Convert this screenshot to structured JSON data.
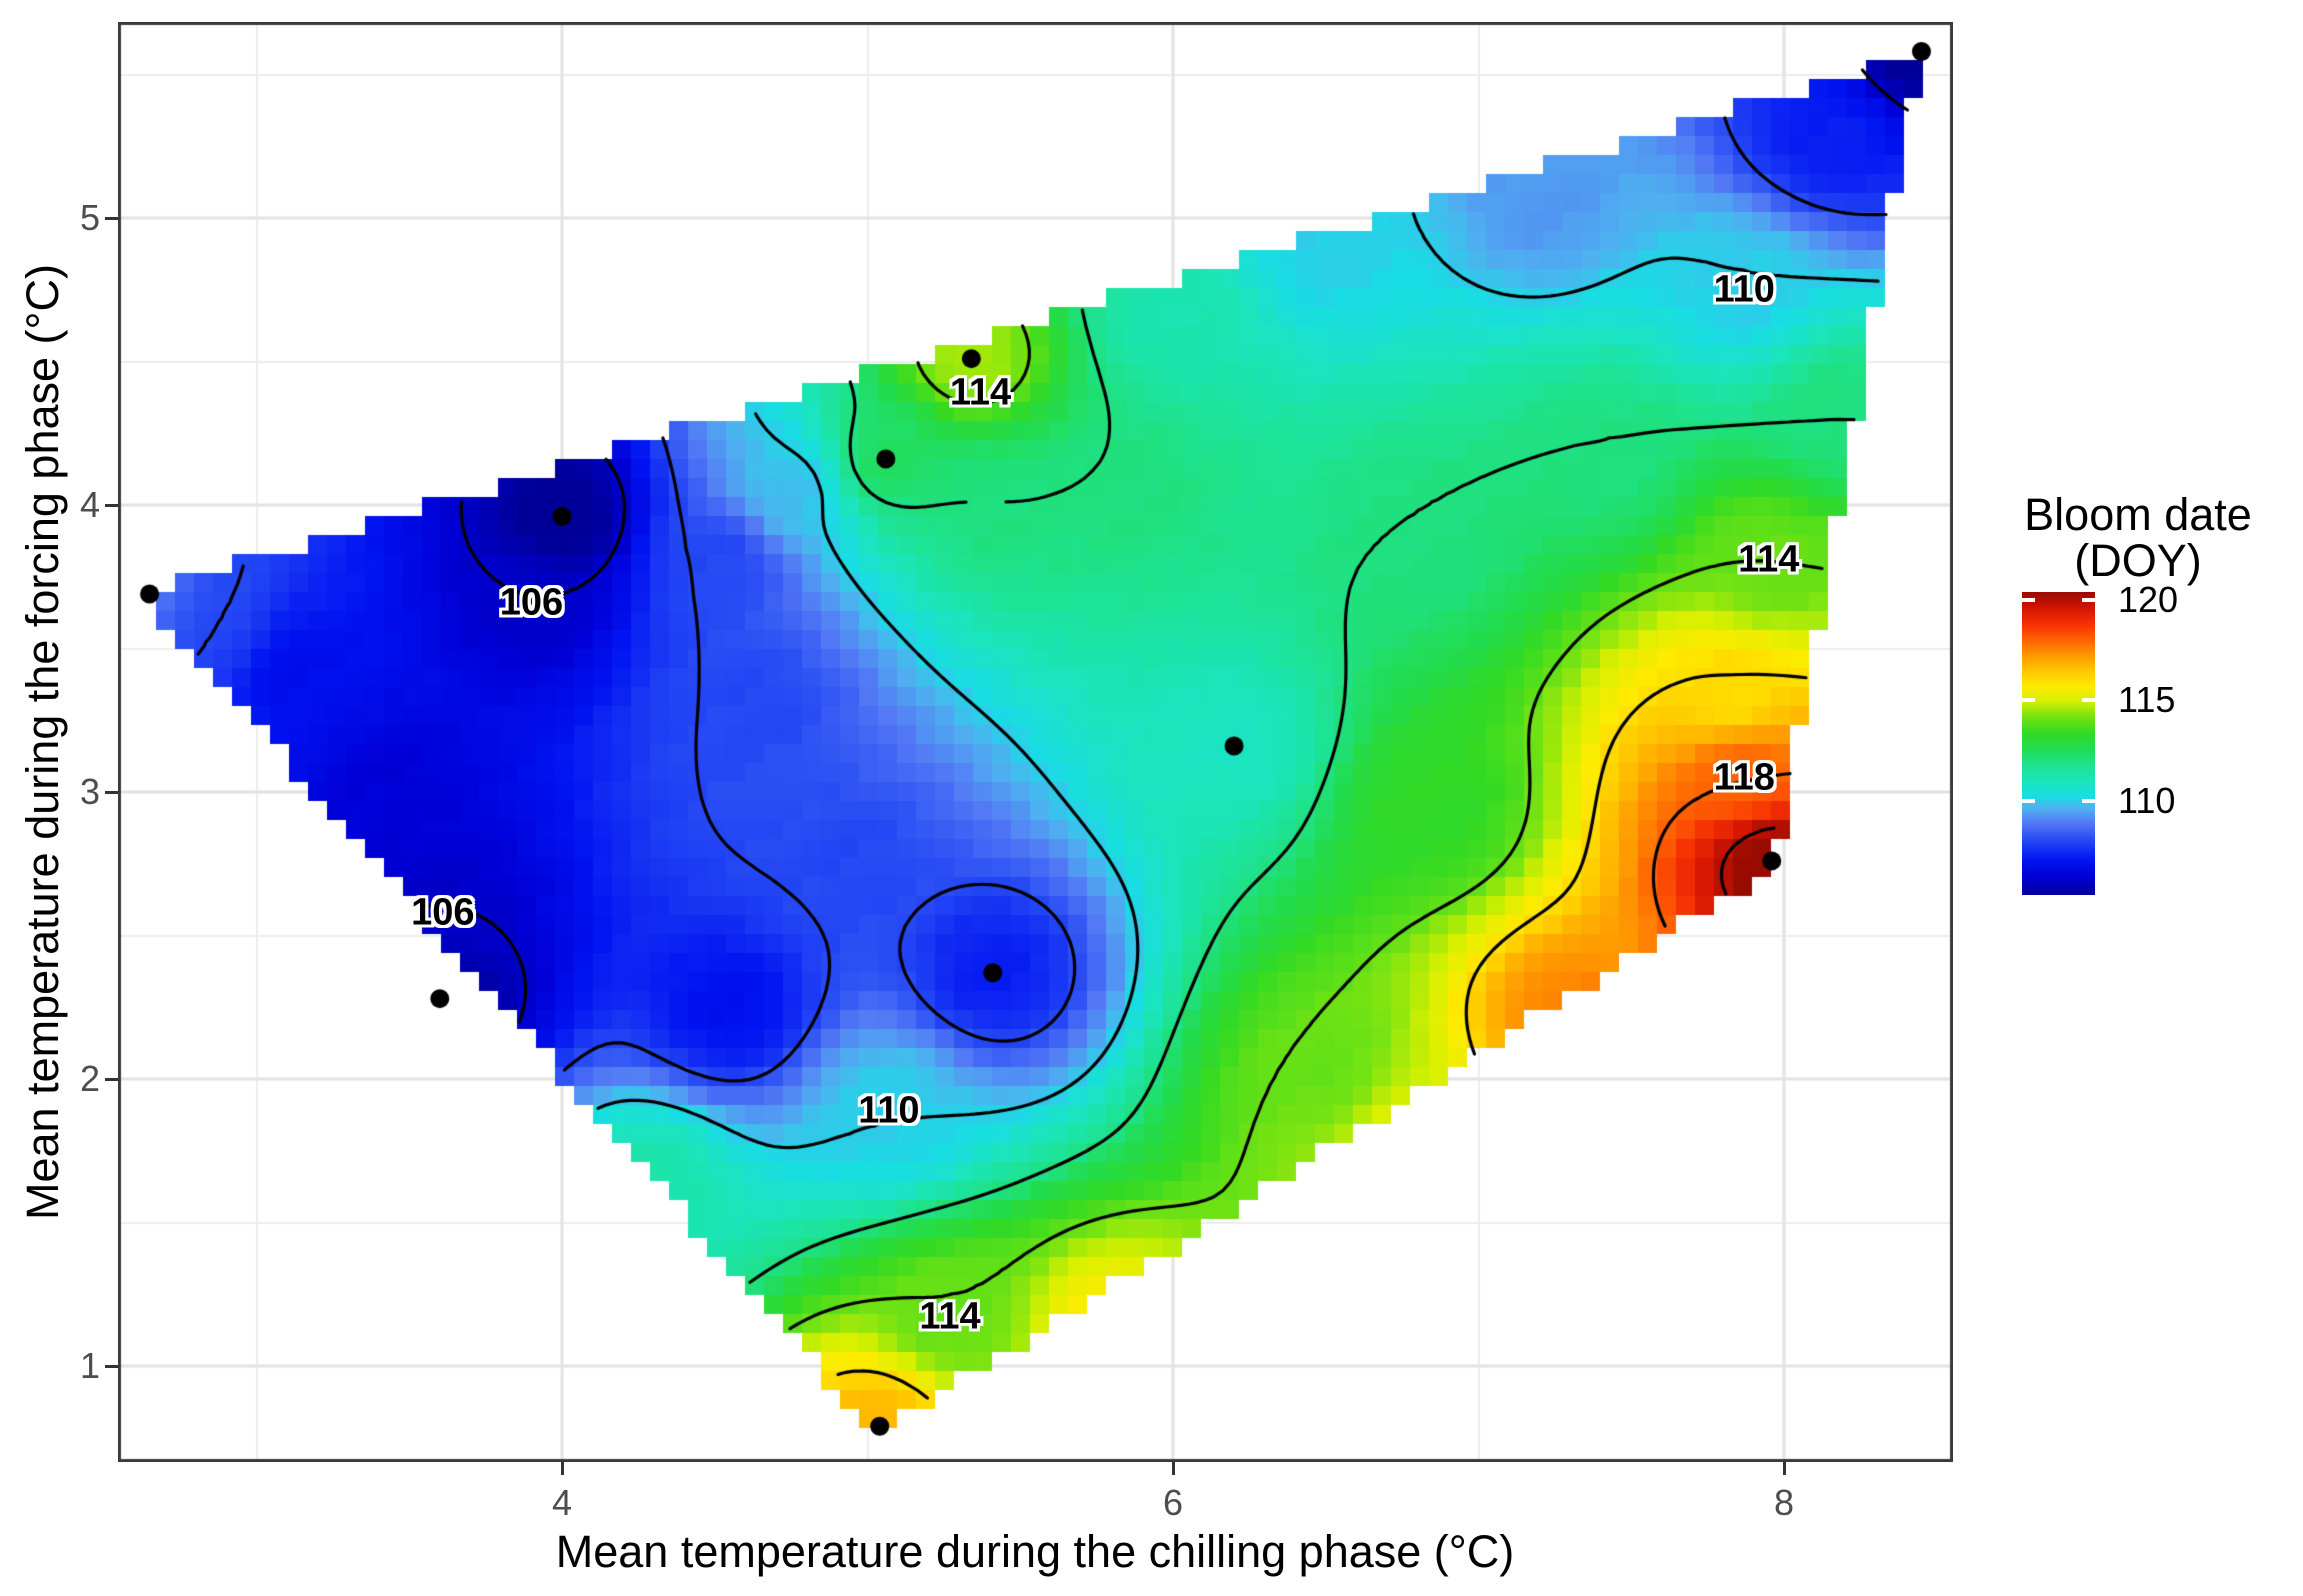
{
  "chart_data": {
    "type": "heatmap",
    "xlabel": "Mean temperature during the chilling phase (°C)",
    "ylabel": "Mean temperature during the forcing phase (°C)",
    "x_ticks": [
      4,
      6,
      8
    ],
    "x_minor_ticks": [
      3,
      5,
      7
    ],
    "y_ticks": [
      1,
      2,
      3,
      4,
      5
    ],
    "y_minor_ticks": [
      1.5,
      2.5,
      3.5,
      4.5,
      5.5
    ],
    "xlim": [
      2.55,
      8.55
    ],
    "ylim": [
      0.65,
      5.69
    ],
    "legend": {
      "title_line1": "Bloom date",
      "title_line2": "(DOY)",
      "ticks": [
        110,
        115,
        120
      ],
      "domain": [
        105.3,
        120.4
      ]
    },
    "color_scale": [
      {
        "v": 105.3,
        "c": "#000099"
      },
      {
        "v": 106.2,
        "c": "#0000D6"
      },
      {
        "v": 107.0,
        "c": "#0013F2"
      },
      {
        "v": 108.0,
        "c": "#2447F4"
      },
      {
        "v": 108.9,
        "c": "#5379F5"
      },
      {
        "v": 109.6,
        "c": "#4FB0F0"
      },
      {
        "v": 110.2,
        "c": "#19DDE4"
      },
      {
        "v": 111.0,
        "c": "#1BE5BB"
      },
      {
        "v": 111.8,
        "c": "#1EE28E"
      },
      {
        "v": 112.6,
        "c": "#22DC50"
      },
      {
        "v": 113.4,
        "c": "#33DA23"
      },
      {
        "v": 114.2,
        "c": "#77E312"
      },
      {
        "v": 115.0,
        "c": "#D7F000"
      },
      {
        "v": 115.7,
        "c": "#FFEB00"
      },
      {
        "v": 116.5,
        "c": "#FFC400"
      },
      {
        "v": 117.3,
        "c": "#FF9401"
      },
      {
        "v": 118.0,
        "c": "#FF6103"
      },
      {
        "v": 118.8,
        "c": "#F63002"
      },
      {
        "v": 119.6,
        "c": "#D31402"
      },
      {
        "v": 120.4,
        "c": "#970B00"
      }
    ],
    "contour_levels": [
      106,
      108,
      110,
      112,
      114,
      116,
      118,
      120
    ],
    "contour_labels": [
      {
        "text": "106",
        "x": 3.9,
        "y": 3.66
      },
      {
        "text": "106",
        "x": 3.61,
        "y": 2.58
      },
      {
        "text": "110",
        "x": 7.87,
        "y": 4.75
      },
      {
        "text": "110",
        "x": 5.07,
        "y": 1.89
      },
      {
        "text": "114",
        "x": 5.37,
        "y": 4.39
      },
      {
        "text": "114",
        "x": 7.95,
        "y": 3.81
      },
      {
        "text": "114",
        "x": 5.27,
        "y": 1.17
      },
      {
        "text": "118",
        "x": 7.87,
        "y": 3.05
      }
    ],
    "observations": [
      {
        "x": 2.65,
        "y": 3.69
      },
      {
        "x": 4.0,
        "y": 3.96
      },
      {
        "x": 3.6,
        "y": 2.28
      },
      {
        "x": 5.41,
        "y": 2.37
      },
      {
        "x": 5.34,
        "y": 4.51
      },
      {
        "x": 5.06,
        "y": 4.16
      },
      {
        "x": 6.2,
        "y": 3.16
      },
      {
        "x": 7.96,
        "y": 2.76
      },
      {
        "x": 8.45,
        "y": 5.58
      },
      {
        "x": 5.04,
        "y": 0.79
      }
    ],
    "surface_anchors": [
      {
        "x": 2.65,
        "y": 3.69,
        "v": 108.8
      },
      {
        "x": 2.86,
        "y": 3.59,
        "v": 108.0
      },
      {
        "x": 3.12,
        "y": 3.42,
        "v": 106.8
      },
      {
        "x": 4.0,
        "y": 3.96,
        "v": 105.1
      },
      {
        "x": 3.9,
        "y": 3.66,
        "v": 106.0
      },
      {
        "x": 3.45,
        "y": 3.0,
        "v": 106.2
      },
      {
        "x": 3.6,
        "y": 2.28,
        "v": 105.3
      },
      {
        "x": 3.61,
        "y": 2.58,
        "v": 106.0
      },
      {
        "x": 4.52,
        "y": 3.8,
        "v": 108.0
      },
      {
        "x": 4.62,
        "y": 3.31,
        "v": 108.0
      },
      {
        "x": 4.93,
        "y": 2.74,
        "v": 108.0
      },
      {
        "x": 5.41,
        "y": 2.37,
        "v": 107.2
      },
      {
        "x": 4.55,
        "y": 2.25,
        "v": 106.9
      },
      {
        "x": 5.07,
        "y": 1.89,
        "v": 110.0
      },
      {
        "x": 4.29,
        "y": 1.64,
        "v": 111.3
      },
      {
        "x": 5.27,
        "y": 1.17,
        "v": 114.0
      },
      {
        "x": 5.04,
        "y": 0.79,
        "v": 116.7
      },
      {
        "x": 5.8,
        "y": 1.08,
        "v": 115.9
      },
      {
        "x": 6.5,
        "y": 2.02,
        "v": 114.0
      },
      {
        "x": 6.75,
        "y": 1.78,
        "v": 115.3
      },
      {
        "x": 7.3,
        "y": 2.2,
        "v": 117.6
      },
      {
        "x": 7.83,
        "y": 3.34,
        "v": 116.0
      },
      {
        "x": 7.87,
        "y": 3.05,
        "v": 118.0
      },
      {
        "x": 7.96,
        "y": 2.76,
        "v": 120.6
      },
      {
        "x": 6.85,
        "y": 2.95,
        "v": 113.3
      },
      {
        "x": 6.2,
        "y": 3.16,
        "v": 110.9
      },
      {
        "x": 6.82,
        "y": 3.88,
        "v": 112.0
      },
      {
        "x": 7.42,
        "y": 4.16,
        "v": 112.0
      },
      {
        "x": 8.16,
        "y": 4.32,
        "v": 112.0
      },
      {
        "x": 7.95,
        "y": 3.81,
        "v": 114.0
      },
      {
        "x": 7.87,
        "y": 4.75,
        "v": 110.0
      },
      {
        "x": 6.49,
        "y": 4.91,
        "v": 110.0
      },
      {
        "x": 7.2,
        "y": 5.05,
        "v": 109.3
      },
      {
        "x": 8.15,
        "y": 5.28,
        "v": 107.2
      },
      {
        "x": 8.45,
        "y": 5.58,
        "v": 105.2
      },
      {
        "x": 5.34,
        "y": 4.51,
        "v": 114.6
      },
      {
        "x": 5.06,
        "y": 4.16,
        "v": 112.4
      },
      {
        "x": 5.43,
        "y": 3.99,
        "v": 112.0
      },
      {
        "x": 5.85,
        "y": 4.05,
        "v": 112.0
      },
      {
        "x": 4.75,
        "y": 4.05,
        "v": 109.8
      },
      {
        "x": 6.0,
        "y": 4.67,
        "v": 111.2
      }
    ],
    "hull": [
      [
        2.62,
        3.69
      ],
      [
        8.45,
        5.58
      ],
      [
        7.97,
        2.74
      ],
      [
        5.03,
        0.76
      ]
    ]
  }
}
